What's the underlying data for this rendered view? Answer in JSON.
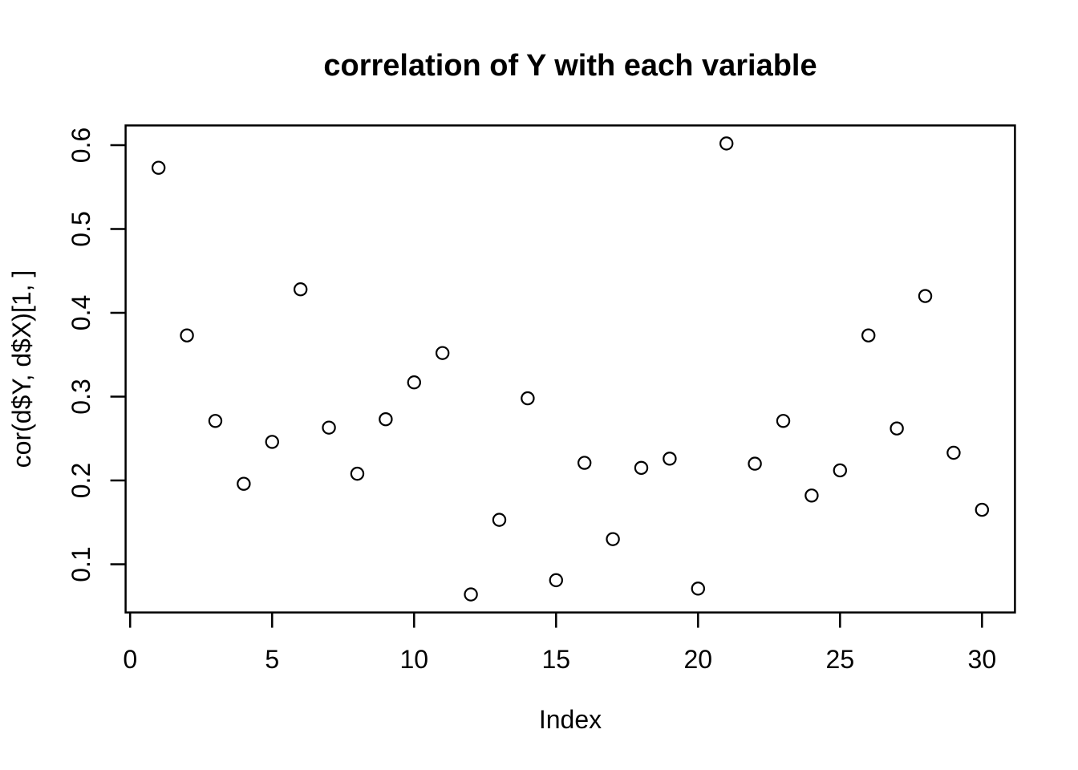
{
  "title": "correlation of Y with each variable",
  "chart_data": {
    "type": "scatter",
    "title": "correlation of Y with each variable",
    "xlabel": "Index",
    "ylabel": "cor(d$Y, d$X)[1, ]",
    "marker": "open-circle",
    "grid": false,
    "legend": null,
    "x": [
      1,
      2,
      3,
      4,
      5,
      6,
      7,
      8,
      9,
      10,
      11,
      12,
      13,
      14,
      15,
      16,
      17,
      18,
      19,
      20,
      21,
      22,
      23,
      24,
      25,
      26,
      27,
      28,
      29,
      30
    ],
    "y": [
      0.573,
      0.373,
      0.271,
      0.196,
      0.246,
      0.428,
      0.263,
      0.208,
      0.273,
      0.317,
      0.352,
      0.064,
      0.153,
      0.298,
      0.081,
      0.221,
      0.13,
      0.215,
      0.226,
      0.071,
      0.602,
      0.22,
      0.271,
      0.182,
      0.212,
      0.373,
      0.262,
      0.42,
      0.233,
      0.165
    ],
    "xlim": [
      -0.16,
      31.16
    ],
    "ylim": [
      0.0425,
      0.6235
    ],
    "x_ticks": {
      "values": [
        0,
        5,
        10,
        15,
        20,
        25,
        30
      ],
      "labels": [
        "0",
        "5",
        "10",
        "15",
        "20",
        "25",
        "30"
      ]
    },
    "y_ticks": {
      "values": [
        0.1,
        0.2,
        0.3,
        0.4,
        0.5,
        0.6
      ],
      "labels": [
        "0.1",
        "0.2",
        "0.3",
        "0.4",
        "0.5",
        "0.6"
      ]
    },
    "colors": {
      "points": "#000000",
      "axis": "#000000",
      "text": "#000000",
      "background": "#ffffff"
    }
  }
}
